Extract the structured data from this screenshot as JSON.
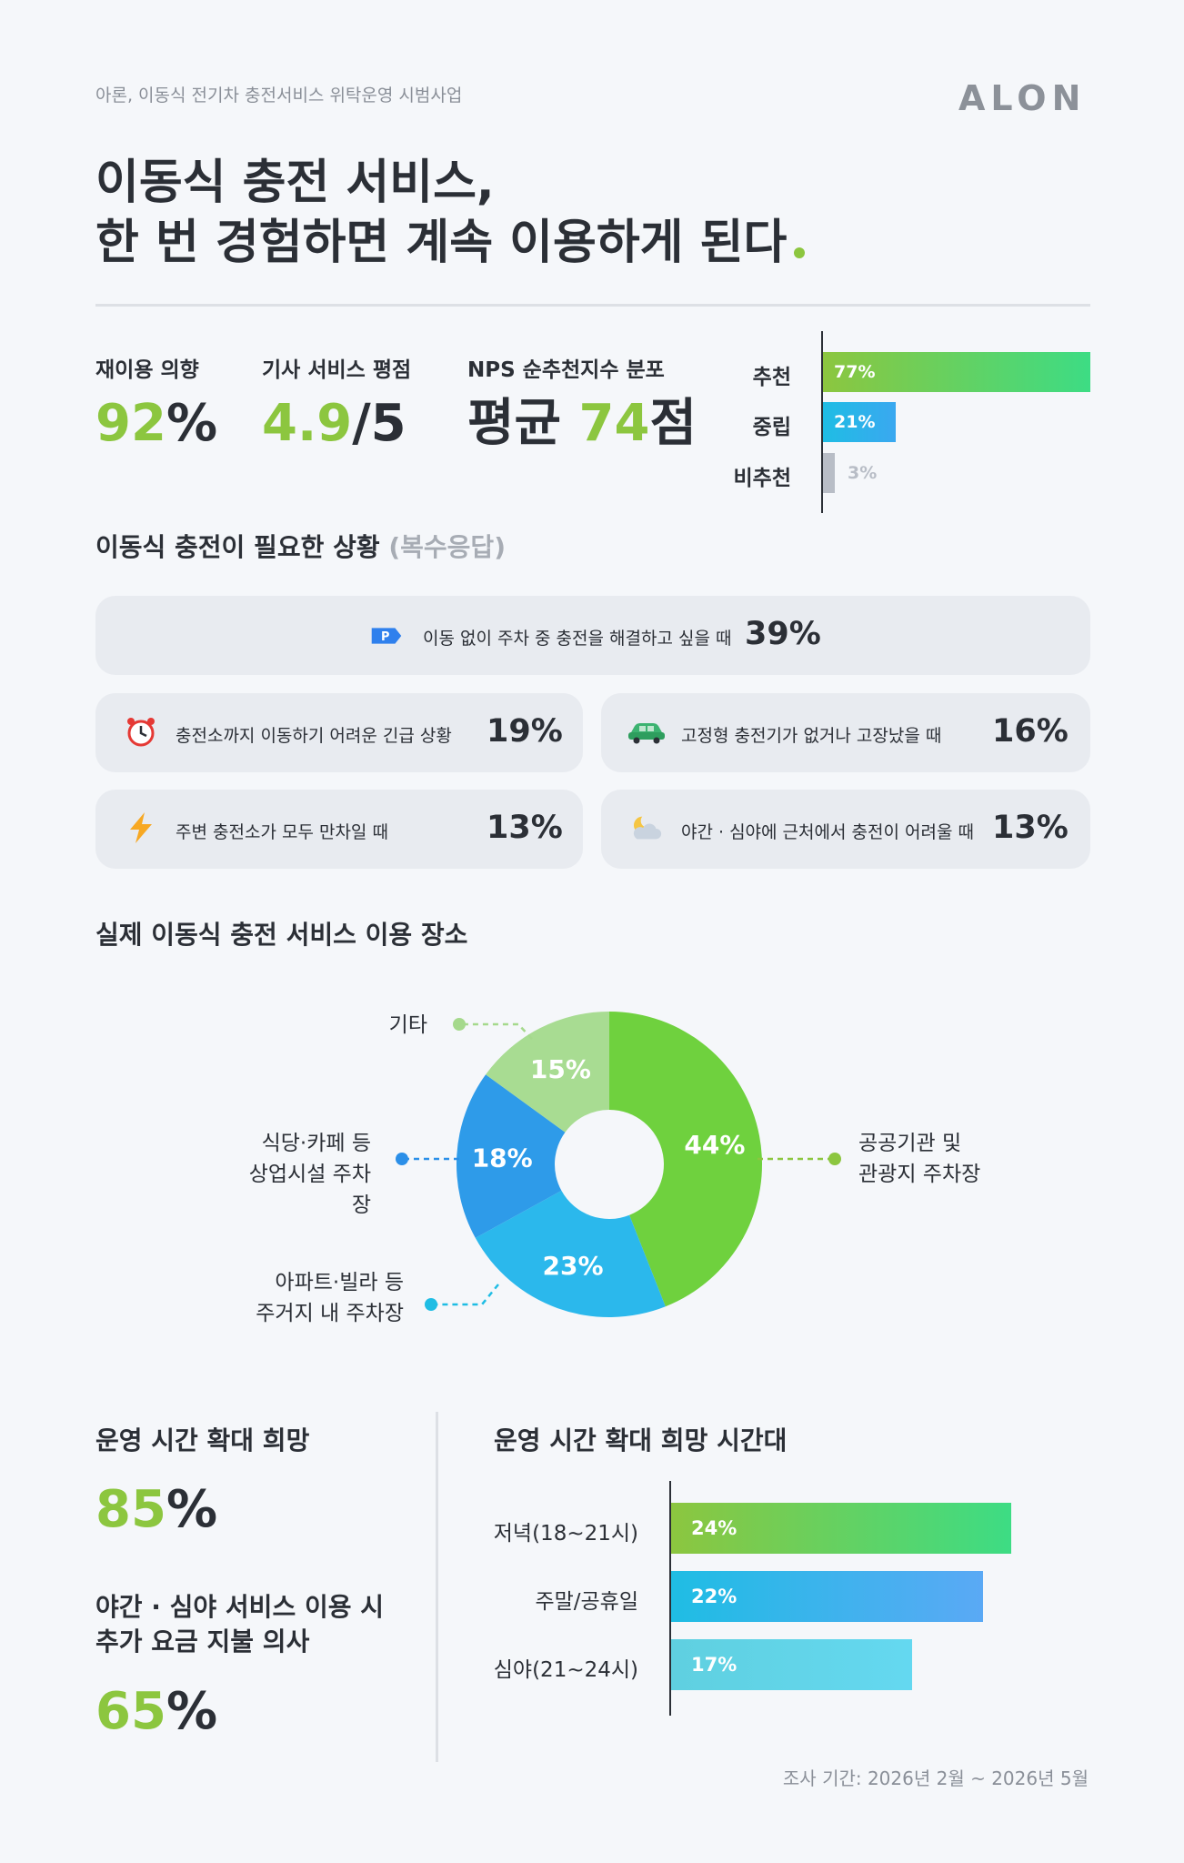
{
  "header": {
    "subtitle": "아론, 이동식 전기차 충전서비스 위탁운영 시범사업",
    "logo": "ALON",
    "title_line1": "이동식 충전 서비스,",
    "title_line2": "한 번 경험하면 계속 이용하게 된다"
  },
  "kpis": {
    "reuse": {
      "label": "재이용 의향",
      "value": "92",
      "unit": "%"
    },
    "rating": {
      "label": "기사 서비스 평점",
      "value": "4.9",
      "suffix": "/5"
    },
    "nps": {
      "label": "NPS 순추천지수 분포",
      "prefix": "평균",
      "value": "74",
      "suffix": "점"
    }
  },
  "situations": {
    "title": "이동식 충전이 필요한 상황",
    "title_note": "(복수응답)",
    "items": [
      {
        "icon": "parking-icon",
        "text": "이동 없이 주차 중 충전을 해결하고 싶을 때",
        "pct": "39%"
      },
      {
        "icon": "alarm-clock-icon",
        "text": "충전소까지 이동하기 어려운 긴급 상황",
        "pct": "19%"
      },
      {
        "icon": "car-icon",
        "text": "고정형 충전기가 없거나 고장났을 때",
        "pct": "16%"
      },
      {
        "icon": "lightning-icon",
        "text": "주변 충전소가 모두 만차일 때",
        "pct": "13%"
      },
      {
        "icon": "night-cloud-icon",
        "text": "야간 · 심야에 근처에서 충전이 어려울 때",
        "pct": "13%"
      }
    ]
  },
  "places": {
    "title": "실제 이동식 충전 서비스 이용 장소",
    "labels": {
      "public_line1": "공공기관 및",
      "public_line2": "관광지 주차장",
      "apartment_line1": "아파트·빌라 등",
      "apartment_line2": "주거지 내 주차장",
      "commercial_line1": "식당·카페 등",
      "commercial_line2": "상업시설 주차장",
      "other": "기타"
    }
  },
  "operation": {
    "extend_label": "운영 시간 확대 희망",
    "extend_value": "85",
    "extend_unit": "%",
    "night_label_line1": "야간 · 심야 서비스 이용 시",
    "night_label_line2": "추가 요금 지불 의사",
    "night_value": "65",
    "night_unit": "%",
    "timeslot_title": "운영 시간 확대 희망 시간대"
  },
  "footer": {
    "survey_period": "조사 기간: 2026년 2월 ~ 2026년 5월"
  },
  "colors": {
    "accent": "#8cc63f",
    "text": "#2b2f36",
    "muted": "#8a8f98",
    "card": "#e8ebf0"
  },
  "chart_data": [
    {
      "type": "bar",
      "orientation": "horizontal",
      "categories": [
        "추천",
        "중립",
        "비추천"
      ],
      "values": [
        77,
        21,
        3
      ],
      "value_labels": [
        "77%",
        "21%",
        "3%"
      ],
      "xlim": [
        0,
        77
      ]
    },
    {
      "type": "pie",
      "donut": true,
      "categories": [
        "공공기관 및 관광지 주차장",
        "아파트·빌라 등 주거지 내 주차장",
        "식당·카페 등 상업시설 주차장",
        "기타"
      ],
      "values": [
        44,
        23,
        18,
        15
      ],
      "value_labels": [
        "44%",
        "23%",
        "18%",
        "15%"
      ]
    },
    {
      "type": "bar",
      "orientation": "horizontal",
      "categories": [
        "저녁(18~21시)",
        "주말/공휴일",
        "심야(21~24시)"
      ],
      "values": [
        24,
        22,
        17
      ],
      "value_labels": [
        "24%",
        "22%",
        "17%"
      ],
      "xlim": [
        0,
        24
      ]
    }
  ]
}
